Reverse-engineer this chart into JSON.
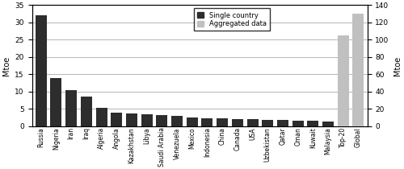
{
  "categories": [
    "Russia",
    "Nigeria",
    "Iran",
    "Iraq",
    "Algeria",
    "Angola",
    "Kazakhstan",
    "Libya",
    "Saudi Arabia",
    "Venezuela",
    "Mexico",
    "Indonesia",
    "China",
    "Canada",
    "USA",
    "Uzbekistan",
    "Qatar",
    "Oman",
    "Kuwait",
    "Malaysia",
    "Top-20",
    "Global"
  ],
  "values_left": [
    32,
    14,
    10.5,
    8.5,
    5.2,
    4.0,
    3.7,
    3.5,
    3.2,
    2.9,
    2.5,
    2.3,
    2.2,
    2.1,
    2.0,
    1.9,
    1.8,
    1.7,
    1.5,
    1.3,
    null,
    null
  ],
  "values_right": [
    null,
    null,
    null,
    null,
    null,
    null,
    null,
    null,
    null,
    null,
    null,
    null,
    null,
    null,
    null,
    null,
    null,
    null,
    null,
    null,
    105,
    130
  ],
  "bar_colors_left": "#2d2d2d",
  "bar_colors_right": "#c0c0c0",
  "ylabel_left": "Mtoe",
  "ylabel_right": "Mtoe",
  "ylim_left": [
    0,
    35
  ],
  "ylim_right": [
    0,
    140
  ],
  "yticks_left": [
    0,
    5,
    10,
    15,
    20,
    25,
    30,
    35
  ],
  "yticks_right": [
    0,
    20,
    40,
    60,
    80,
    100,
    120,
    140
  ],
  "legend_labels": [
    "Single country",
    "Aggregated data"
  ],
  "legend_colors": [
    "#2d2d2d",
    "#c0c0c0"
  ],
  "background_color": "#ffffff",
  "figsize": [
    5.0,
    2.1
  ],
  "dpi": 100
}
